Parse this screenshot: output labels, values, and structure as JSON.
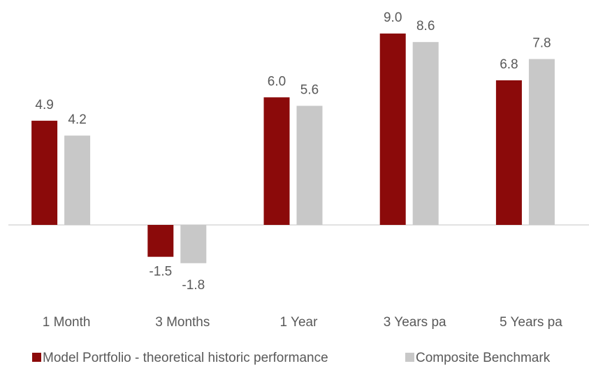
{
  "chart_data": {
    "type": "bar",
    "categories": [
      "1 Month",
      "3 Months",
      "1 Year",
      "3 Years pa",
      "5 Years pa"
    ],
    "series": [
      {
        "name": "Model Portfolio - theoretical historic performance",
        "color": "#8b0a0a",
        "values": [
          4.9,
          -1.5,
          6.0,
          9.0,
          6.8
        ],
        "value_labels": [
          "4.9",
          "-1.5",
          "6.0",
          "9.0",
          "6.8"
        ]
      },
      {
        "name": "Composite Benchmark",
        "color": "#c8c8c8",
        "values": [
          4.2,
          -1.8,
          5.6,
          8.6,
          7.8
        ],
        "value_labels": [
          "4.2",
          "-1.8",
          "5.6",
          "8.6",
          "7.8"
        ]
      }
    ],
    "legend": "bottom"
  }
}
